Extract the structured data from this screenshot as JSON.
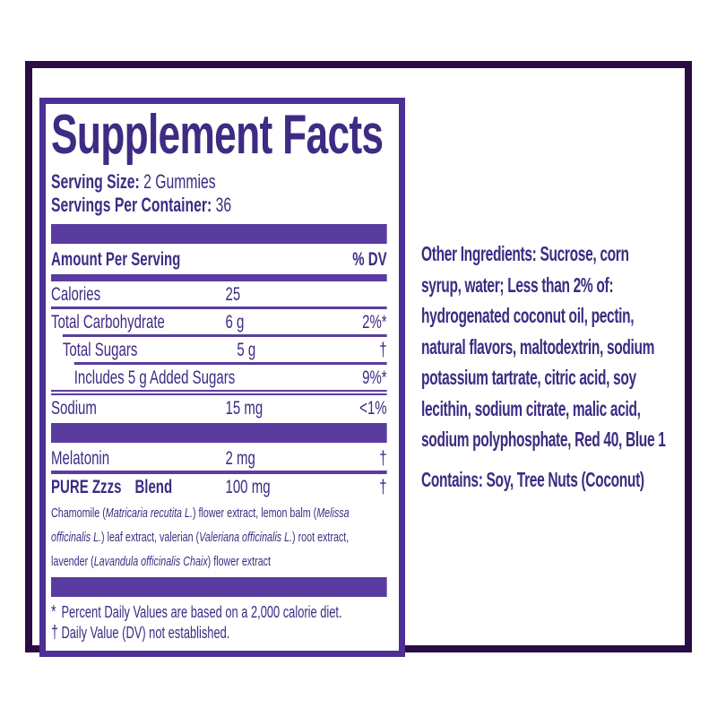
{
  "colors": {
    "bar_purple": "#5a3ca1",
    "text_purple": "#3e2b83",
    "inner_border": "#4d2f96",
    "outer_border": "#2a0d45"
  },
  "panel": {
    "title": "Supplement Facts",
    "serving_size_label": "Serving Size:",
    "serving_size_value": "2 Gummies",
    "servings_per_container_label": "Servings Per Container:",
    "servings_per_container_value": "36",
    "table": {
      "header_left": "Amount Per Serving",
      "header_right": "% DV",
      "rows": [
        {
          "name": "Calories",
          "amount": "25",
          "dv": "",
          "indent": 0,
          "bold": false,
          "sep_before": "none"
        },
        {
          "name": "Total Carbohydrate",
          "amount": "6 g",
          "dv": "2%*",
          "indent": 0,
          "bold": false,
          "sep_before": "full"
        },
        {
          "name": "Total Sugars",
          "amount": "5 g",
          "dv": "†",
          "indent": 1,
          "bold": false,
          "sep_before": "ind1"
        },
        {
          "name": "Includes 5 g Added Sugars",
          "amount": "",
          "dv": "9%*",
          "indent": 2,
          "bold": false,
          "sep_before": "ind2"
        },
        {
          "name": "Sodium",
          "amount": "15 mg",
          "dv": "<1%",
          "indent": 0,
          "bold": false,
          "sep_before": "double"
        },
        {
          "name": "Melatonin",
          "amount": "2 mg",
          "dv": "†",
          "indent": 0,
          "bold": false,
          "sep_before": "bar"
        },
        {
          "name": "PURE Zzzs Blend",
          "amount": "100 mg",
          "dv": "†",
          "indent": 0,
          "bold": true,
          "sep_before": "thick"
        }
      ]
    },
    "blend_description_lines": [
      [
        {
          "t": "Chamomile (",
          "i": 0
        },
        {
          "t": "Matricaria recutita L.",
          "i": 1
        },
        {
          "t": ") flower extract, lemon balm (",
          "i": 0
        },
        {
          "t": "Melissa",
          "i": 1
        }
      ],
      [
        {
          "t": "officinalis L.",
          "i": 1
        },
        {
          "t": ") leaf extract, valerian (",
          "i": 0
        },
        {
          "t": "Valeriana officinalis L.",
          "i": 1
        },
        {
          "t": ") root extract,",
          "i": 0
        }
      ],
      [
        {
          "t": "lavender (",
          "i": 0
        },
        {
          "t": "Lavandula officinalis Chaix",
          "i": 1
        },
        {
          "t": ") flower extract",
          "i": 0
        }
      ]
    ],
    "footnotes": [
      {
        "symbol": "*",
        "text": "Percent Daily Values are based on a 2,000 calorie diet."
      },
      {
        "symbol": "†",
        "text": "Daily Value (DV) not established."
      }
    ]
  },
  "right_column": {
    "other_ingredients_lines": [
      "Other Ingredients: Sucrose, corn",
      "syrup, water; Less than 2% of:",
      "hydrogenated coconut oil, pectin,",
      "natural flavors, maltodextrin, sodium",
      "potassium tartrate, citric acid, soy",
      "lecithin, sodium citrate, malic acid,",
      "sodium polyphosphate, Red 40, Blue 1"
    ],
    "contains_label": "Contains:",
    "contains_text": "Soy, Tree Nuts (Coconut)"
  }
}
